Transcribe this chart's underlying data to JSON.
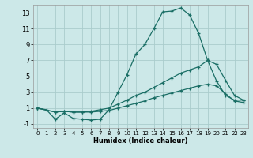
{
  "xlabel": "Humidex (Indice chaleur)",
  "bg_color": "#cce8e8",
  "grid_color": "#aacccc",
  "line_color": "#1a6e65",
  "xlim": [
    -0.5,
    23.5
  ],
  "ylim": [
    -1.5,
    14.0
  ],
  "xticks": [
    0,
    1,
    2,
    3,
    4,
    5,
    6,
    7,
    8,
    9,
    10,
    11,
    12,
    13,
    14,
    15,
    16,
    17,
    18,
    19,
    20,
    21,
    22,
    23
  ],
  "yticks": [
    -1,
    1,
    3,
    5,
    7,
    9,
    11,
    13
  ],
  "curve1_x": [
    0,
    1,
    2,
    3,
    4,
    5,
    6,
    7,
    8,
    9,
    10,
    11,
    12,
    13,
    14,
    15,
    16,
    17,
    18,
    19,
    20,
    21,
    22,
    23
  ],
  "curve1_y": [
    1.0,
    0.8,
    -0.4,
    0.4,
    -0.3,
    -0.4,
    -0.5,
    -0.4,
    0.8,
    3.0,
    5.2,
    7.8,
    9.0,
    11.0,
    13.1,
    13.2,
    13.6,
    12.7,
    10.4,
    7.0,
    4.4,
    2.6,
    2.0,
    2.0
  ],
  "curve2_x": [
    0,
    2,
    3,
    4,
    5,
    6,
    7,
    8,
    9,
    10,
    11,
    12,
    13,
    14,
    15,
    16,
    17,
    18,
    19,
    20,
    21,
    22,
    23
  ],
  "curve2_y": [
    1.0,
    0.5,
    0.6,
    0.5,
    0.5,
    0.6,
    0.8,
    1.0,
    1.5,
    2.0,
    2.6,
    3.0,
    3.6,
    4.2,
    4.8,
    5.4,
    5.8,
    6.2,
    7.0,
    6.5,
    4.5,
    2.6,
    2.0
  ],
  "curve3_x": [
    0,
    2,
    3,
    4,
    5,
    6,
    7,
    8,
    9,
    10,
    11,
    12,
    13,
    14,
    15,
    16,
    17,
    18,
    19,
    20,
    21,
    22,
    23
  ],
  "curve3_y": [
    1.0,
    0.5,
    0.6,
    0.5,
    0.5,
    0.5,
    0.6,
    0.7,
    1.0,
    1.3,
    1.6,
    1.9,
    2.3,
    2.6,
    2.9,
    3.2,
    3.5,
    3.8,
    4.0,
    3.8,
    2.8,
    1.9,
    1.7
  ]
}
